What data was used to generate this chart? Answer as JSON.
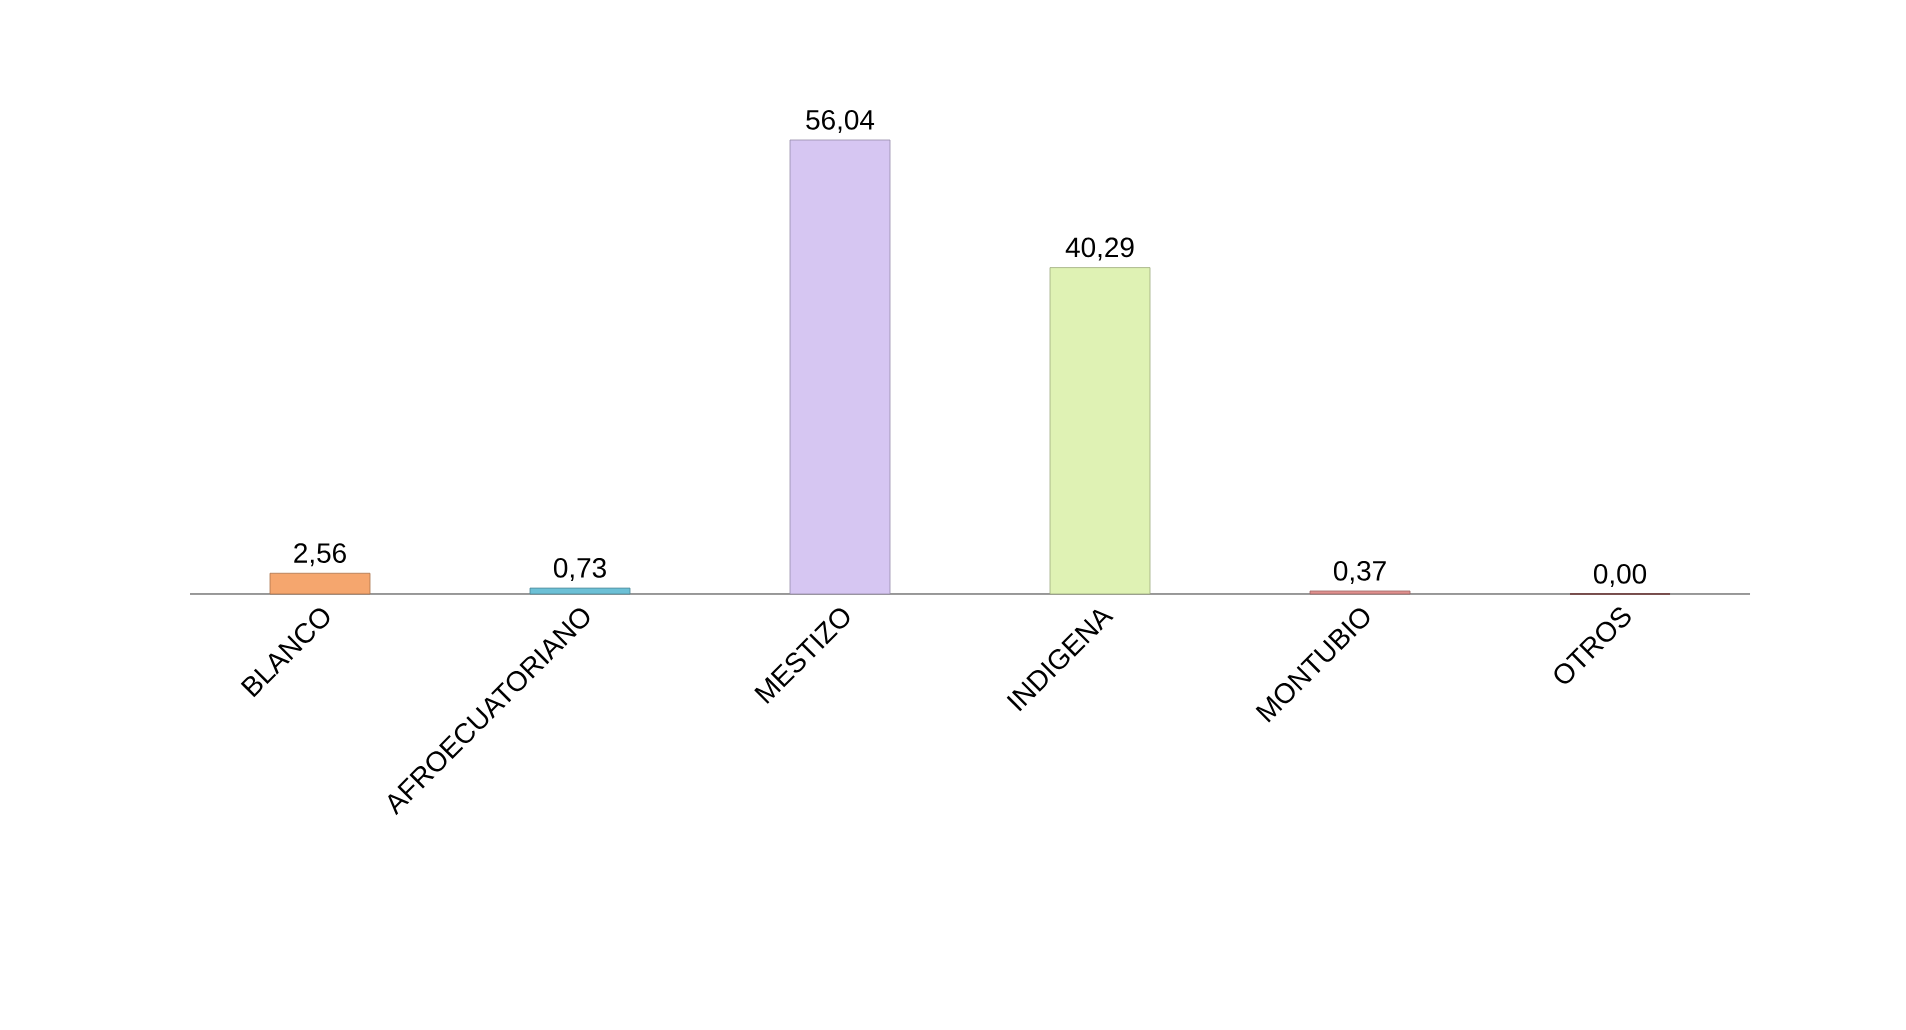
{
  "chart_data": {
    "type": "bar",
    "categories": [
      "BLANCO",
      "AFROECUATORIANO",
      "MESTIZO",
      "INDIGENA",
      "MONTUBIO",
      "OTROS"
    ],
    "values": [
      2.56,
      0.73,
      56.04,
      40.29,
      0.37,
      0.0
    ],
    "value_labels": [
      "2,56",
      "0,73",
      "56,04",
      "40,29",
      "0,37",
      "0,00"
    ],
    "colors": [
      "#f5a66e",
      "#6cc0d6",
      "#d6c6f2",
      "#dff2b4",
      "#e0908e",
      "#953735"
    ]
  }
}
